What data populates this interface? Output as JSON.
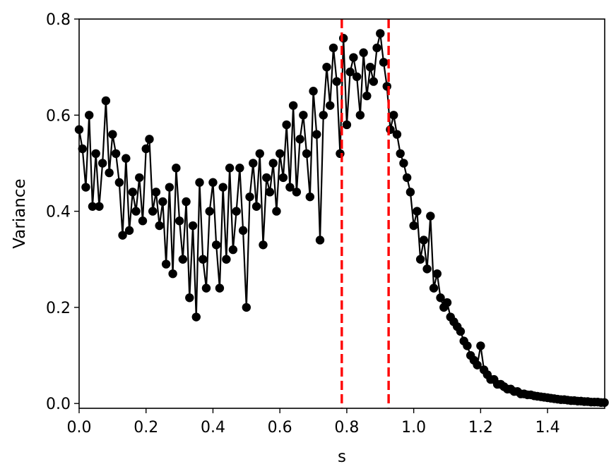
{
  "chart_data": {
    "type": "line",
    "title": "",
    "xlabel": "s",
    "ylabel": "Variance",
    "xlim": [
      0.0,
      1.5708
    ],
    "ylim": [
      -0.01,
      0.8
    ],
    "x_ticks": [
      0.0,
      0.2,
      0.4,
      0.6,
      0.8,
      1.0,
      1.2,
      1.4
    ],
    "x_tick_labels": [
      "0.0",
      "0.2",
      "0.4",
      "0.6",
      "0.8",
      "1.0",
      "1.2",
      "1.4"
    ],
    "y_ticks": [
      0.0,
      0.2,
      0.4,
      0.6,
      0.8
    ],
    "y_tick_labels": [
      "0.0",
      "0.2",
      "0.4",
      "0.6",
      "0.8"
    ],
    "grid": false,
    "legend": "none",
    "colors": {
      "series": "#000000",
      "vlines": "#ff0000"
    },
    "vertical_lines": [
      {
        "x": 0.785,
        "style": "dashed",
        "color": "#ff0000"
      },
      {
        "x": 0.925,
        "style": "dashed",
        "color": "#ff0000"
      }
    ],
    "series": [
      {
        "marker": "circle",
        "color": "#000000",
        "x": [
          0.0,
          0.01,
          0.02,
          0.03,
          0.04,
          0.05,
          0.06,
          0.07,
          0.08,
          0.09,
          0.1,
          0.11,
          0.12,
          0.13,
          0.14,
          0.15,
          0.16,
          0.17,
          0.18,
          0.19,
          0.2,
          0.21,
          0.22,
          0.23,
          0.24,
          0.25,
          0.26,
          0.27,
          0.28,
          0.29,
          0.3,
          0.31,
          0.32,
          0.33,
          0.34,
          0.35,
          0.36,
          0.37,
          0.38,
          0.39,
          0.4,
          0.41,
          0.42,
          0.43,
          0.44,
          0.45,
          0.46,
          0.47,
          0.48,
          0.49,
          0.5,
          0.51,
          0.52,
          0.53,
          0.54,
          0.55,
          0.56,
          0.57,
          0.58,
          0.59,
          0.6,
          0.61,
          0.62,
          0.63,
          0.64,
          0.65,
          0.66,
          0.67,
          0.68,
          0.69,
          0.7,
          0.71,
          0.72,
          0.73,
          0.74,
          0.75,
          0.76,
          0.77,
          0.78,
          0.79,
          0.8,
          0.81,
          0.82,
          0.83,
          0.84,
          0.85,
          0.86,
          0.87,
          0.88,
          0.89,
          0.9,
          0.91,
          0.92,
          0.93,
          0.94,
          0.95,
          0.96,
          0.97,
          0.98,
          0.99,
          1.0,
          1.01,
          1.02,
          1.03,
          1.04,
          1.05,
          1.06,
          1.07,
          1.08,
          1.09,
          1.1,
          1.11,
          1.12,
          1.13,
          1.14,
          1.15,
          1.16,
          1.17,
          1.18,
          1.19,
          1.2,
          1.21,
          1.22,
          1.23,
          1.24,
          1.25,
          1.26,
          1.27,
          1.28,
          1.29,
          1.3,
          1.31,
          1.32,
          1.33,
          1.34,
          1.35,
          1.36,
          1.37,
          1.38,
          1.39,
          1.4,
          1.41,
          1.42,
          1.43,
          1.44,
          1.45,
          1.46,
          1.47,
          1.48,
          1.49,
          1.5,
          1.51,
          1.52,
          1.53,
          1.54,
          1.55,
          1.56,
          1.57
        ],
        "values": [
          0.57,
          0.53,
          0.45,
          0.6,
          0.41,
          0.52,
          0.41,
          0.5,
          0.63,
          0.48,
          0.56,
          0.52,
          0.46,
          0.35,
          0.51,
          0.36,
          0.44,
          0.4,
          0.47,
          0.38,
          0.53,
          0.55,
          0.4,
          0.44,
          0.37,
          0.42,
          0.29,
          0.45,
          0.27,
          0.49,
          0.38,
          0.3,
          0.42,
          0.22,
          0.37,
          0.18,
          0.46,
          0.3,
          0.24,
          0.4,
          0.46,
          0.33,
          0.24,
          0.45,
          0.3,
          0.49,
          0.32,
          0.4,
          0.49,
          0.36,
          0.2,
          0.43,
          0.5,
          0.41,
          0.52,
          0.33,
          0.47,
          0.44,
          0.5,
          0.4,
          0.52,
          0.47,
          0.58,
          0.45,
          0.62,
          0.44,
          0.55,
          0.6,
          0.52,
          0.43,
          0.65,
          0.56,
          0.34,
          0.6,
          0.7,
          0.62,
          0.74,
          0.67,
          0.52,
          0.76,
          0.58,
          0.69,
          0.72,
          0.68,
          0.6,
          0.73,
          0.64,
          0.7,
          0.67,
          0.74,
          0.77,
          0.71,
          0.66,
          0.57,
          0.6,
          0.56,
          0.52,
          0.5,
          0.47,
          0.44,
          0.37,
          0.4,
          0.3,
          0.34,
          0.28,
          0.39,
          0.24,
          0.27,
          0.22,
          0.2,
          0.21,
          0.18,
          0.17,
          0.16,
          0.15,
          0.13,
          0.12,
          0.1,
          0.09,
          0.08,
          0.12,
          0.07,
          0.06,
          0.05,
          0.05,
          0.04,
          0.04,
          0.035,
          0.03,
          0.03,
          0.025,
          0.025,
          0.02,
          0.02,
          0.018,
          0.018,
          0.016,
          0.015,
          0.014,
          0.013,
          0.012,
          0.011,
          0.01,
          0.009,
          0.008,
          0.008,
          0.007,
          0.006,
          0.006,
          0.005,
          0.005,
          0.004,
          0.004,
          0.003,
          0.003,
          0.003,
          0.002,
          0.002
        ]
      }
    ]
  }
}
